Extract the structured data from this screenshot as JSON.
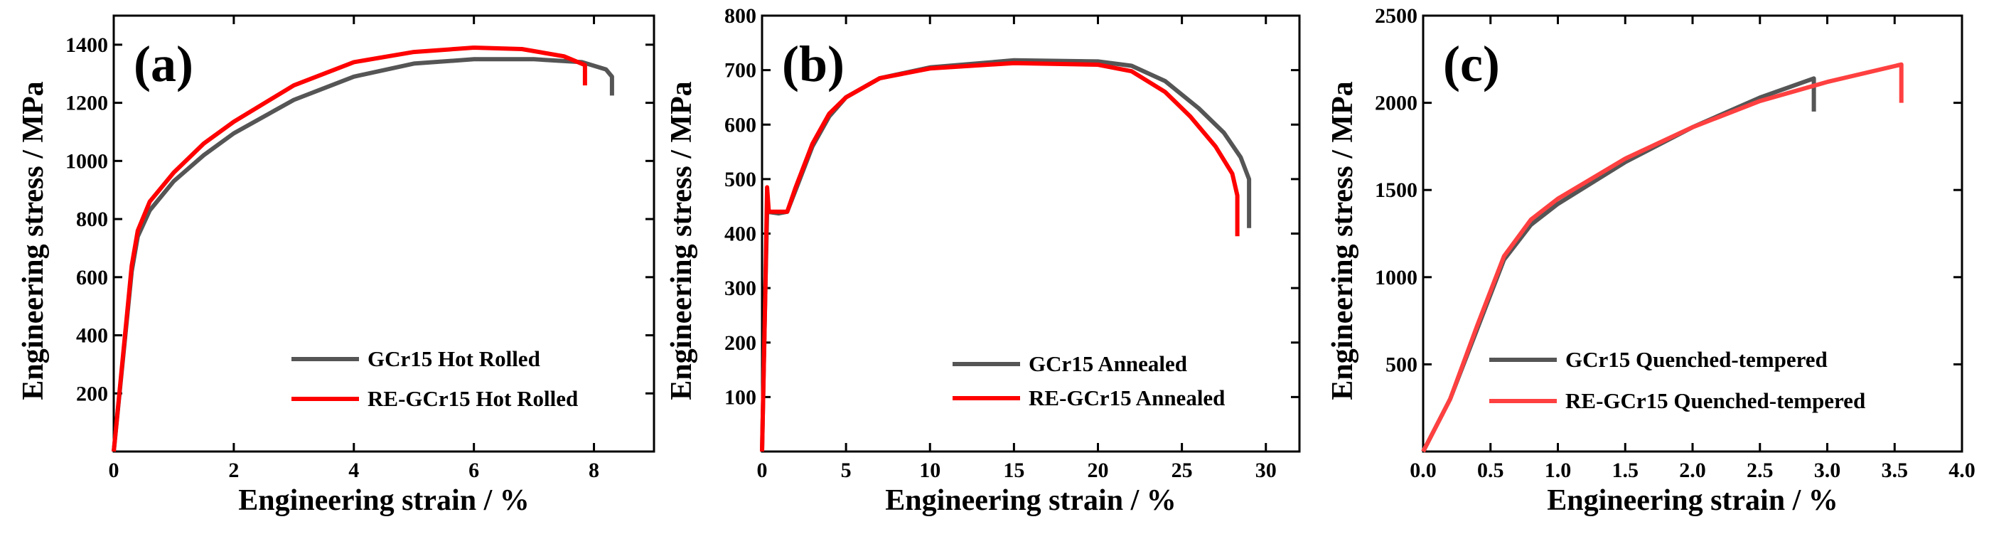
{
  "figure": {
    "description_panels": [
      "a",
      "b",
      "c"
    ]
  },
  "chart_data": [
    {
      "type": "line",
      "panel_label": "(a)",
      "xlabel": "Engineering strain / %",
      "ylabel": "Engineering stress / MPa",
      "xlim": [
        0,
        9
      ],
      "ylim": [
        0,
        1500
      ],
      "xticks": [
        0,
        2,
        4,
        6,
        8
      ],
      "xtick_labels": [
        "0",
        "2",
        "4",
        "6",
        "8"
      ],
      "yticks": [
        200,
        400,
        600,
        800,
        1000,
        1200,
        1400
      ],
      "ytick_labels": [
        "200",
        "400",
        "600",
        "800",
        "1000",
        "1200",
        "1400"
      ],
      "legend_position": "bottom-right",
      "series": [
        {
          "name": "GCr15 Hot Rolled",
          "color": "#555555",
          "points": [
            [
              0,
              0
            ],
            [
              0.3,
              620
            ],
            [
              0.4,
              740
            ],
            [
              0.6,
              830
            ],
            [
              1.0,
              930
            ],
            [
              1.5,
              1020
            ],
            [
              2,
              1095
            ],
            [
              3,
              1210
            ],
            [
              4,
              1290
            ],
            [
              5,
              1335
            ],
            [
              6,
              1350
            ],
            [
              7,
              1350
            ],
            [
              7.8,
              1340
            ],
            [
              8.2,
              1315
            ],
            [
              8.3,
              1290
            ],
            [
              8.3,
              1225
            ]
          ]
        },
        {
          "name": "RE-GCr15 Hot Rolled",
          "color": "#ff0000",
          "points": [
            [
              0,
              0
            ],
            [
              0.3,
              640
            ],
            [
              0.4,
              760
            ],
            [
              0.6,
              860
            ],
            [
              1.0,
              960
            ],
            [
              1.5,
              1060
            ],
            [
              2,
              1135
            ],
            [
              3,
              1260
            ],
            [
              4,
              1340
            ],
            [
              5,
              1375
            ],
            [
              6,
              1390
            ],
            [
              6.8,
              1385
            ],
            [
              7.5,
              1360
            ],
            [
              7.85,
              1330
            ],
            [
              7.85,
              1260
            ]
          ]
        }
      ]
    },
    {
      "type": "line",
      "panel_label": "(b)",
      "xlabel": "Engineering strain / %",
      "ylabel": "Engineering stress / MPa",
      "xlim": [
        0,
        32
      ],
      "ylim": [
        0,
        800
      ],
      "xticks": [
        0,
        5,
        10,
        15,
        20,
        25,
        30
      ],
      "xtick_labels": [
        "0",
        "5",
        "10",
        "15",
        "20",
        "25",
        "30"
      ],
      "yticks": [
        100,
        200,
        300,
        400,
        500,
        600,
        700,
        800
      ],
      "ytick_labels": [
        "100",
        "200",
        "300",
        "400",
        "500",
        "600",
        "700",
        "800"
      ],
      "legend_position": "bottom-right",
      "series": [
        {
          "name": "GCr15 Annealed",
          "color": "#555555",
          "points": [
            [
              0,
              0
            ],
            [
              0.2,
              300
            ],
            [
              0.3,
              440
            ],
            [
              1.0,
              437
            ],
            [
              1.5,
              440
            ],
            [
              2,
              480
            ],
            [
              3,
              560
            ],
            [
              4,
              615
            ],
            [
              5,
              650
            ],
            [
              7,
              685
            ],
            [
              10,
              705
            ],
            [
              15,
              718
            ],
            [
              20,
              716
            ],
            [
              22,
              708
            ],
            [
              24,
              680
            ],
            [
              26,
              630
            ],
            [
              27.5,
              585
            ],
            [
              28.5,
              540
            ],
            [
              29,
              500
            ],
            [
              29,
              410
            ]
          ]
        },
        {
          "name": "RE-GCr15 Annealed",
          "color": "#ff0000",
          "points": [
            [
              0,
              0
            ],
            [
              0.2,
              300
            ],
            [
              0.3,
              485
            ],
            [
              0.4,
              440
            ],
            [
              1.5,
              440
            ],
            [
              2,
              485
            ],
            [
              3,
              565
            ],
            [
              4,
              620
            ],
            [
              5,
              650
            ],
            [
              7,
              685
            ],
            [
              10,
              703
            ],
            [
              15,
              713
            ],
            [
              20,
              710
            ],
            [
              22,
              698
            ],
            [
              24,
              660
            ],
            [
              25.5,
              615
            ],
            [
              27,
              560
            ],
            [
              28,
              510
            ],
            [
              28.3,
              470
            ],
            [
              28.3,
              395
            ]
          ]
        }
      ]
    },
    {
      "type": "line",
      "panel_label": "(c)",
      "xlabel": "Engineering strain / %",
      "ylabel": "Engineering stress / MPa",
      "xlim": [
        0,
        4
      ],
      "ylim": [
        0,
        2500
      ],
      "xticks": [
        0,
        0.5,
        1.0,
        1.5,
        2.0,
        2.5,
        3.0,
        3.5,
        4.0
      ],
      "xtick_labels": [
        "0.0",
        "0.5",
        "1.0",
        "1.5",
        "2.0",
        "2.5",
        "3.0",
        "3.5",
        "4.0"
      ],
      "yticks": [
        500,
        1000,
        1500,
        2000,
        2500
      ],
      "ytick_labels": [
        "500",
        "1000",
        "1500",
        "2000",
        "2500"
      ],
      "legend_position": "bottom-right",
      "series": [
        {
          "name": "GCr15 Quenched-tempered",
          "color": "#555555",
          "points": [
            [
              0,
              0
            ],
            [
              0.2,
              300
            ],
            [
              0.4,
              700
            ],
            [
              0.6,
              1100
            ],
            [
              0.8,
              1300
            ],
            [
              1.0,
              1420
            ],
            [
              1.5,
              1660
            ],
            [
              2.0,
              1860
            ],
            [
              2.5,
              2030
            ],
            [
              2.9,
              2140
            ],
            [
              2.9,
              1950
            ]
          ]
        },
        {
          "name": "RE-GCr15 Quenched-tempered",
          "color": "#ff4040",
          "points": [
            [
              0,
              0
            ],
            [
              0.2,
              300
            ],
            [
              0.4,
              720
            ],
            [
              0.6,
              1120
            ],
            [
              0.8,
              1330
            ],
            [
              1.0,
              1450
            ],
            [
              1.5,
              1680
            ],
            [
              2.0,
              1860
            ],
            [
              2.5,
              2010
            ],
            [
              3.0,
              2120
            ],
            [
              3.55,
              2220
            ],
            [
              3.55,
              2000
            ]
          ]
        }
      ]
    }
  ]
}
